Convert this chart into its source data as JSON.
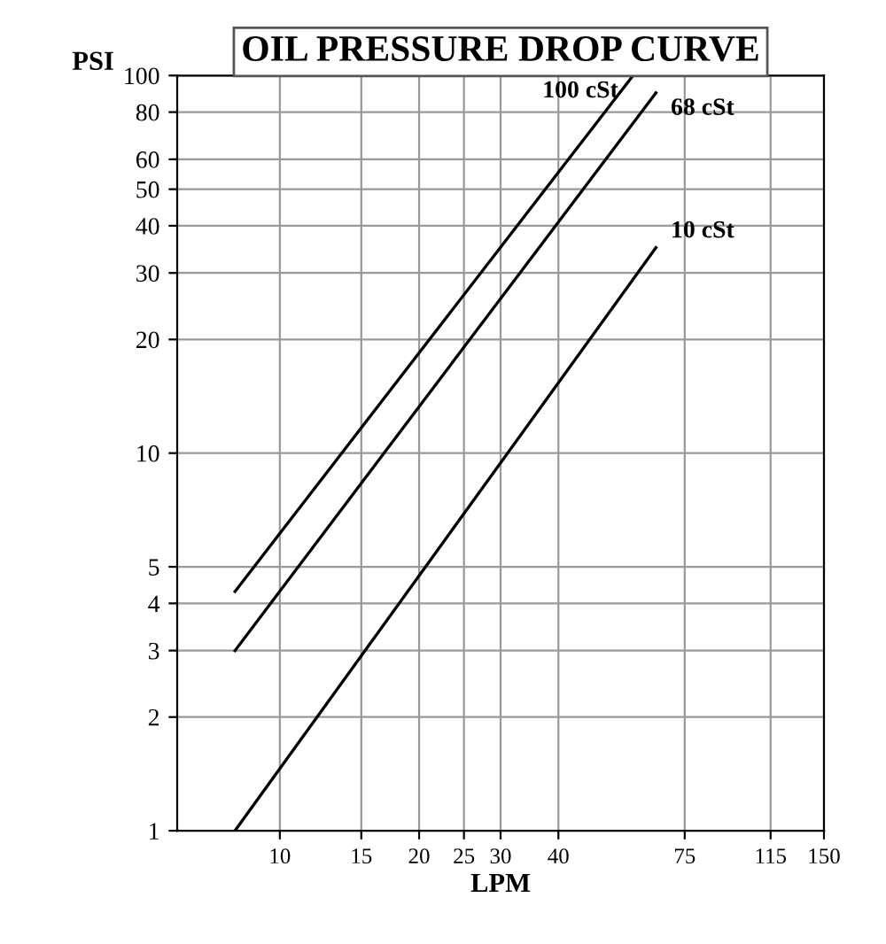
{
  "chart_data": {
    "type": "line",
    "title": "OIL PRESSURE DROP CURVE",
    "xlabel": "LPM",
    "ylabel": "PSI",
    "log": "xy",
    "xlim": [
      6,
      150
    ],
    "ylim": [
      1,
      100
    ],
    "xticks": [
      10,
      15,
      20,
      25,
      30,
      40,
      75,
      115,
      150
    ],
    "yticks": [
      1,
      2,
      3,
      4,
      5,
      10,
      20,
      30,
      40,
      50,
      60,
      80,
      100
    ],
    "grid": true,
    "legend": false,
    "marker": "none",
    "line_style": "solid",
    "series": [
      {
        "name": "100 cSt",
        "color": "#000000",
        "x": [
          8,
          58
        ],
        "values": [
          4.3,
          100
        ]
      },
      {
        "name": "68 cSt",
        "color": "#000000",
        "x": [
          8,
          65
        ],
        "values": [
          3,
          90
        ]
      },
      {
        "name": "10 cSt",
        "color": "#000000",
        "x": [
          8,
          65
        ],
        "values": [
          1,
          35
        ]
      }
    ]
  }
}
